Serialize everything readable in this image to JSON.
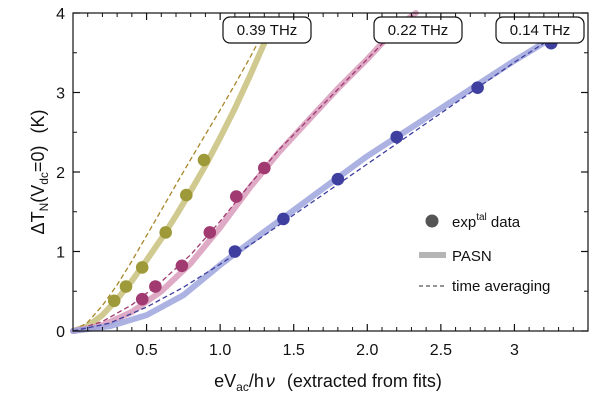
{
  "chart_data": {
    "type": "line",
    "xlabel": {
      "main": "eV",
      "sub": "ac",
      "rest": "/h",
      "greek": "ν",
      "note": "(extracted from fits)"
    },
    "ylabel": {
      "delta": "ΔT",
      "sub1": "N",
      "paren_open": "(V",
      "sub2": "dc",
      "rest": "=0)",
      "unit": "(K)"
    },
    "xlim": [
      0,
      3.5
    ],
    "ylim": [
      0,
      4
    ],
    "xticks": [
      0.5,
      1.0,
      1.5,
      2.0,
      2.5,
      3.0
    ],
    "xtick_labels": [
      "0.5",
      "1.0",
      "1.5",
      "2.0",
      "2.5",
      "3"
    ],
    "yticks": [
      0,
      1,
      2,
      3,
      4
    ],
    "ytick_labels": [
      "0",
      "1",
      "2",
      "3",
      "4"
    ],
    "grid": false,
    "legend_position": "lower-right",
    "legend": {
      "points_label": "exp",
      "points_sup": "tal",
      "points_rest": " data",
      "pasn_label": "PASN",
      "dashed_label": "time averaging"
    },
    "series": [
      {
        "name": "0.39 THz",
        "color": "#c9c17d",
        "point_color": "#9e9a3a",
        "dashed_color": "#a8862a",
        "points_x": [
          0.28,
          0.36,
          0.47,
          0.63,
          0.77,
          0.89
        ],
        "points_y": [
          0.38,
          0.56,
          0.8,
          1.24,
          1.71,
          2.15
        ],
        "pasn_x": [
          0.0,
          0.1,
          0.2,
          0.3,
          0.4,
          0.5,
          0.6,
          0.7,
          0.8,
          0.9,
          1.0,
          1.1,
          1.2,
          1.3
        ],
        "pasn_y": [
          0.0,
          0.06,
          0.2,
          0.4,
          0.63,
          0.89,
          1.16,
          1.45,
          1.76,
          2.08,
          2.43,
          2.8,
          3.2,
          3.62
        ],
        "dashed_x": [
          0.0,
          0.1,
          0.2,
          0.3,
          0.4,
          0.5,
          0.6,
          0.7,
          0.8,
          0.9,
          1.0,
          1.1,
          1.2,
          1.3
        ],
        "dashed_y": [
          0.0,
          0.11,
          0.32,
          0.58,
          0.88,
          1.2,
          1.52,
          1.84,
          2.16,
          2.47,
          2.78,
          3.1,
          3.43,
          3.78
        ]
      },
      {
        "name": "0.22 THz",
        "color": "#d89bbb",
        "point_color": "#a03a70",
        "dashed_color": "#a03a70",
        "points_x": [
          0.47,
          0.56,
          0.74,
          0.93,
          1.11,
          1.3
        ],
        "points_y": [
          0.4,
          0.56,
          0.82,
          1.24,
          1.69,
          2.05
        ],
        "pasn_x": [
          0.0,
          0.2,
          0.4,
          0.6,
          0.8,
          1.0,
          1.2,
          1.4,
          1.6,
          1.8,
          2.0,
          2.2,
          2.33
        ],
        "pasn_y": [
          0.0,
          0.07,
          0.24,
          0.5,
          0.85,
          1.3,
          1.8,
          2.25,
          2.65,
          3.05,
          3.42,
          3.82,
          4.0
        ],
        "dashed_x": [
          0.0,
          0.2,
          0.4,
          0.6,
          0.8,
          1.0,
          1.2,
          1.4,
          1.6,
          1.8,
          2.0,
          2.2,
          2.33
        ],
        "dashed_y": [
          0.0,
          0.12,
          0.33,
          0.62,
          0.96,
          1.38,
          1.84,
          2.28,
          2.66,
          3.04,
          3.42,
          3.8,
          4.0
        ]
      },
      {
        "name": "0.14 THz",
        "color": "#9ea4dd",
        "point_color": "#3f3f9f",
        "dashed_color": "#3f3fa0",
        "points_x": [
          1.1,
          1.43,
          1.8,
          2.2,
          2.75,
          3.25
        ],
        "points_y": [
          1.0,
          1.41,
          1.91,
          2.44,
          3.06,
          3.62
        ],
        "pasn_x": [
          0.0,
          0.25,
          0.5,
          0.75,
          1.0,
          1.25,
          1.5,
          1.75,
          2.0,
          2.25,
          2.5,
          2.75,
          3.0,
          3.25,
          3.45
        ],
        "pasn_y": [
          0.0,
          0.06,
          0.2,
          0.45,
          0.83,
          1.18,
          1.52,
          1.86,
          2.2,
          2.5,
          2.8,
          3.1,
          3.4,
          3.68,
          3.9
        ],
        "dashed_x": [
          0.0,
          0.25,
          0.5,
          0.75,
          1.0,
          1.25,
          1.5,
          1.75,
          2.0,
          2.25,
          2.5,
          2.75,
          3.0,
          3.25,
          3.45
        ],
        "dashed_y": [
          0.0,
          0.1,
          0.3,
          0.55,
          0.84,
          1.14,
          1.46,
          1.78,
          2.1,
          2.42,
          2.74,
          3.06,
          3.38,
          3.68,
          3.88
        ]
      }
    ]
  }
}
